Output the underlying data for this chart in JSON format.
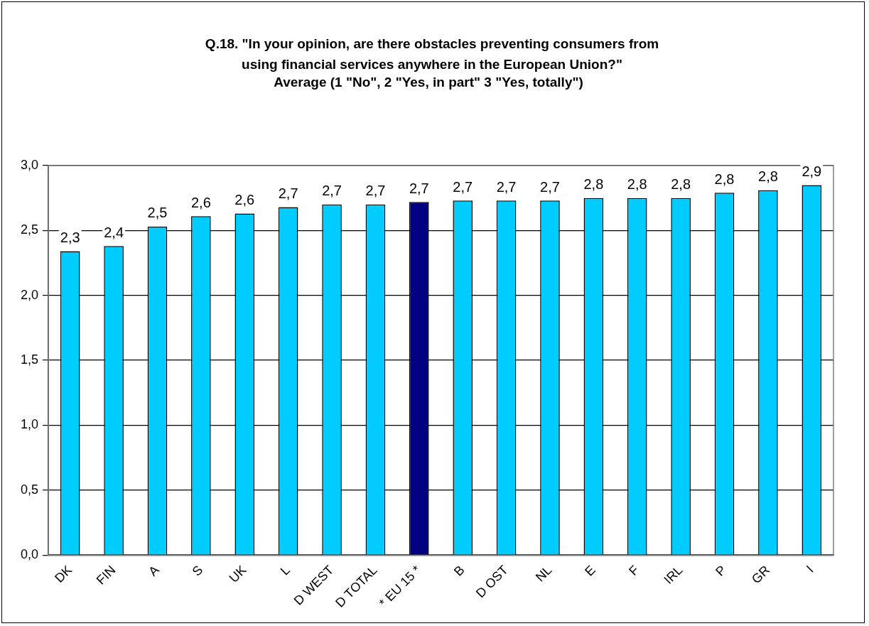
{
  "chart_data": {
    "type": "bar",
    "title": "Q.18.  \"In your opinion, are there obstacles preventing consumers from using financial services anywhere in the European Union?\"",
    "subtitle": "Average  (1 \"No\", 2 \"Yes, in part\" 3 \"Yes, totally\")",
    "categories": [
      "DK",
      "FIN",
      "A",
      "S",
      "UK",
      "L",
      "D WEST",
      "D TOTAL",
      "* EU 15 *",
      "B",
      "D OST",
      "NL",
      "E",
      "F",
      "IRL",
      "P",
      "GR",
      "I"
    ],
    "values": [
      2.34,
      2.38,
      2.53,
      2.61,
      2.63,
      2.68,
      2.7,
      2.7,
      2.72,
      2.73,
      2.73,
      2.73,
      2.75,
      2.75,
      2.75,
      2.79,
      2.81,
      2.85
    ],
    "value_labels": [
      "2,3",
      "2,4",
      "2,5",
      "2,6",
      "2,6",
      "2,7",
      "2,7",
      "2,7",
      "2,7",
      "2,7",
      "2,7",
      "2,7",
      "2,8",
      "2,8",
      "2,8",
      "2,8",
      "2,8",
      "2,9"
    ],
    "colors": [
      "#00ccff",
      "#00ccff",
      "#00ccff",
      "#00ccff",
      "#00ccff",
      "#00ccff",
      "#00ccff",
      "#00ccff",
      "#000080",
      "#00ccff",
      "#00ccff",
      "#00ccff",
      "#00ccff",
      "#00ccff",
      "#00ccff",
      "#00ccff",
      "#00ccff",
      "#00ccff"
    ],
    "ylim": [
      0,
      3
    ],
    "yticks": [
      {
        "value": 0,
        "label": "0,0"
      },
      {
        "value": 0.5,
        "label": "0,5"
      },
      {
        "value": 1,
        "label": "1,0"
      },
      {
        "value": 1.5,
        "label": "1,5"
      },
      {
        "value": 2,
        "label": "2,0"
      },
      {
        "value": 2.5,
        "label": "2,5"
      },
      {
        "value": 3,
        "label": "3,0"
      }
    ],
    "grid": "y",
    "legend": false
  }
}
